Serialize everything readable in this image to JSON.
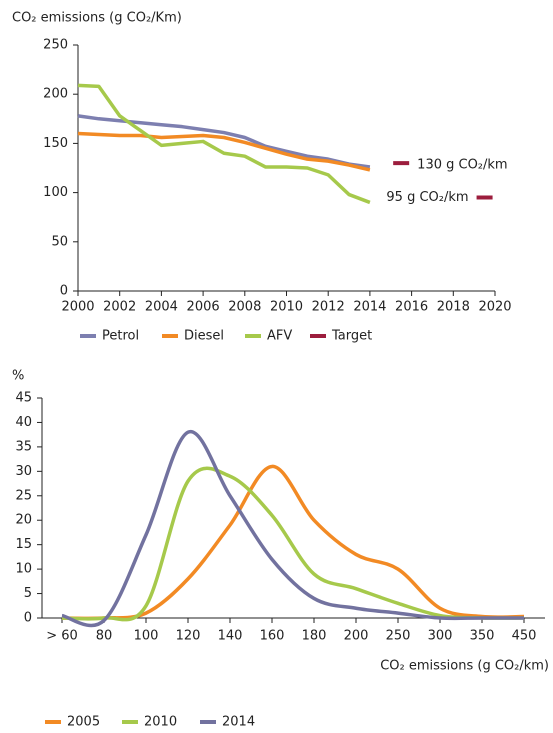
{
  "chart_data": [
    {
      "type": "line",
      "ylabel": "CO₂ emissions (g CO₂/Km)",
      "x": [
        2000,
        2001,
        2002,
        2003,
        2004,
        2005,
        2006,
        2007,
        2008,
        2009,
        2010,
        2011,
        2012,
        2013,
        2014
      ],
      "xlim": [
        2000,
        2020
      ],
      "xticks": [
        2000,
        2002,
        2004,
        2006,
        2008,
        2010,
        2012,
        2014,
        2016,
        2018,
        2020
      ],
      "ylim": [
        0,
        250
      ],
      "yticks": [
        0,
        50,
        100,
        150,
        200,
        250
      ],
      "grid": false,
      "legend": "bottom",
      "series": [
        {
          "name": "Petrol",
          "color": "#7d7fb0",
          "values": [
            178,
            175,
            173,
            171,
            169,
            167,
            164,
            161,
            156,
            147,
            142,
            137,
            134,
            129,
            126
          ]
        },
        {
          "name": "Diesel",
          "color": "#f28a24",
          "values": [
            160,
            159,
            158,
            158,
            156,
            157,
            158,
            156,
            151,
            145,
            139,
            134,
            132,
            128,
            123
          ]
        },
        {
          "name": "AFV",
          "color": "#a6c94b",
          "values": [
            209,
            208,
            178,
            163,
            148,
            150,
            152,
            140,
            137,
            126,
            126,
            125,
            118,
            98,
            90
          ]
        },
        {
          "name": "Target",
          "color": "#9c1d3d",
          "x": [
            2015.5,
            2019.5
          ],
          "values": [
            130,
            95
          ],
          "value_labels": [
            "130 g CO₂/km",
            "95 g CO₂/km"
          ],
          "style": "dash"
        }
      ]
    },
    {
      "type": "line",
      "ylabel": "%",
      "xlabel": "CO₂ emissions (g CO₂/km)",
      "categories": [
        "> 60",
        "80",
        "100",
        "120",
        "140",
        "160",
        "180",
        "200",
        "250",
        "300",
        "350",
        "450"
      ],
      "ylim": [
        0,
        45
      ],
      "yticks": [
        0,
        5,
        10,
        15,
        20,
        25,
        30,
        35,
        40,
        45
      ],
      "grid": false,
      "smooth": true,
      "legend": "bottom",
      "series": [
        {
          "name": "2005",
          "color": "#f28a24",
          "values": [
            0,
            0,
            1,
            8,
            19,
            31,
            20,
            13,
            10,
            2,
            0.3,
            0.3
          ]
        },
        {
          "name": "2010",
          "color": "#a6c94b",
          "values": [
            0,
            0,
            2.5,
            28,
            29,
            21,
            9,
            6,
            3,
            0.5,
            0,
            0
          ]
        },
        {
          "name": "2014",
          "color": "#72729f",
          "values": [
            0.5,
            -0.5,
            17,
            38,
            25,
            12,
            4,
            2,
            1,
            0,
            0,
            0
          ]
        }
      ]
    }
  ]
}
